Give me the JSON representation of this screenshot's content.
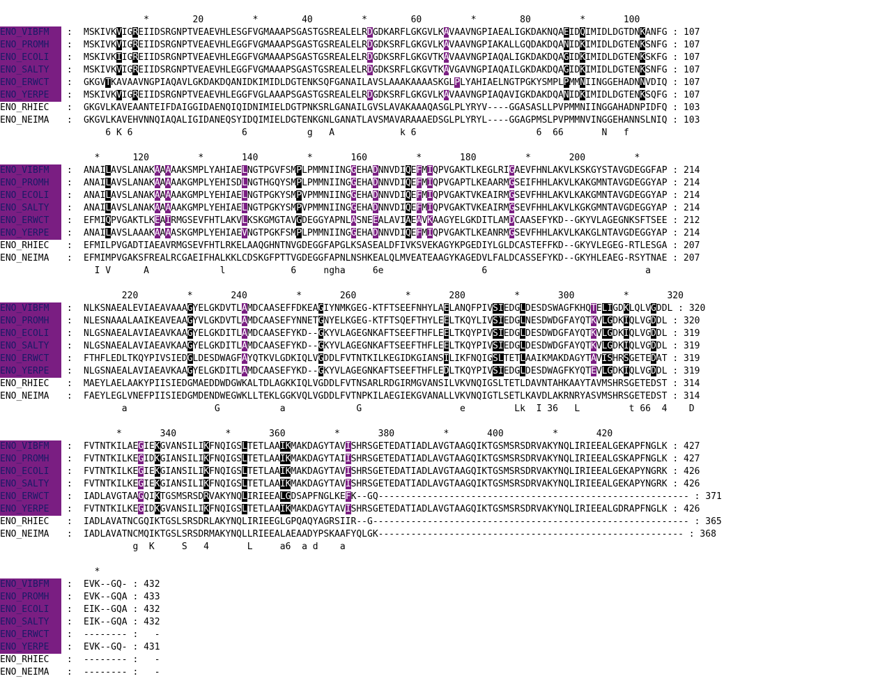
{
  "colors": {
    "identical": "#000000",
    "similar": "#7a1e82",
    "name_highlight": "#7a1e82"
  },
  "blocks": [
    {
      "ruler": "           *        20         *        40         *        60         *        80         *       100",
      "rows": [
        {
          "name": "ENO_VIBFM",
          "hl": true,
          "seq": "MSKIVKVIGREIIDSRGNPTVEAEVHLESGFVGMAAAPSGASTGSREALELRDGDKARFLGKGVLKAVAAVNGPIAEALIGKDAKNQAEIDQIMIDLDGTDNKANFG",
          "end": ": 107"
        },
        {
          "name": "ENO_PROMH",
          "hl": true,
          "seq": "MSKIVKVIGREIIDSRGNPTVEAEVHLEGGFVGMAAAPSGASTGSREALELRDGDKSRFLGKGVLKAVAAVNGPIAKALLGQDAKDQANIDKIMIDLDGTENKSNFG",
          "end": ": 107"
        },
        {
          "name": "ENO_ECOLI",
          "hl": true,
          "seq": "MSKIVKIIGREIIDSRGNPTVEAEVHLEGGFVGMAAAPSGASTGSREALELRDGDKSRFLGKGVTKAVAAVNGPIAQALIGKDAKDQAGIDKIMIDLDGTENKSKFG",
          "end": ": 107"
        },
        {
          "name": "ENO_SALTY",
          "hl": true,
          "seq": "MSKIVKVIGREIIDSRGNPTVEAEVHLEGGFVGMAAAPSGASTGSREALELRDGDKSRFLGKGVTKAVGAVNGPIAQAILGKDAKDQAGIDKIMIDLDGTENKSNFG",
          "end": ": 107"
        },
        {
          "name": "ENO_ERWCT",
          "hl": true,
          "seq": "GKGVTKAVAAVNGPIAQAVLGKDAKDQANIDKIMIDLDGTENKSQFGANAILAVSLAAAKAAAASKGLPLYAHIAELNGTPGKYSMPLPMMNIINGGEHADNNVDIQ",
          "end": ": 107"
        },
        {
          "name": "ENO_YERPE",
          "hl": true,
          "seq": "MSKIVKVIGREIIDSRGNPTVEAEVHLEGGFVGLAAAPSGASTGSREALELRDGDKSRFLGKGVLKAVAAVNGPIAQAVIGKDAKDQANIDKIMIDLDGTENKSQFG",
          "end": ": 107"
        },
        {
          "name": "ENO_RHIEC",
          "hl": false,
          "seq": "GKGVLKAVEAANTEIFDAIGGIDAENQIQIDNIMIELDGTPNKSRLGANAILGVSLAVAKAAAQASGLPLYRYV----GGASASLLPVPMMNIINGGAHADNPIDFQ",
          "end": ": 103"
        },
        {
          "name": "ENO_NEIMA",
          "hl": false,
          "seq": "GKGVLKAVEHVNNQIAQALIGIDANEQSYIDQIMIELDGTENKGNLGANATLAVSMAVARAAAEDSGLPLYRYL----GGAGPMSLPVPMMNVINGGEHANNSLNIQ",
          "end": ": 103"
        }
      ],
      "cons": "    6 K 6                    6           g   A            k 6                      6  66       N   f",
      "marks": [
        {
          "pos": 6,
          "c": "b",
          "rows": [
            0,
            1,
            2,
            3,
            5
          ]
        },
        {
          "pos": 9,
          "c": "b",
          "rows": [
            0,
            1,
            2,
            3,
            5
          ]
        },
        {
          "pos": 52,
          "c": "p",
          "rows": [
            0,
            1,
            2,
            3,
            5
          ]
        },
        {
          "pos": 66,
          "c": "p",
          "rows": [
            0,
            1,
            2,
            3,
            5
          ]
        },
        {
          "pos": 88,
          "c": "b",
          "rows": [
            0,
            1,
            2,
            3,
            5
          ]
        },
        {
          "pos": 91,
          "c": "b",
          "rows": [
            0,
            1,
            2,
            3,
            5
          ]
        },
        {
          "pos": 102,
          "c": "b",
          "rows": [
            0,
            1,
            2,
            3,
            5
          ]
        },
        {
          "pos": 4,
          "c": "b",
          "rows": [
            4
          ]
        },
        {
          "pos": 68,
          "c": "p",
          "rows": [
            4
          ]
        },
        {
          "pos": 88,
          "c": "b",
          "rows": [
            4
          ]
        },
        {
          "pos": 91,
          "c": "b",
          "rows": [
            4
          ]
        },
        {
          "pos": 102,
          "c": "b",
          "rows": [
            4
          ]
        }
      ]
    },
    {
      "ruler": "  *      120         *       140         *       160         *       180         *       200         *",
      "rows": [
        {
          "name": "ENO_VIBFM",
          "hl": true,
          "seq": "ANAILAVSLANAKAAAAAKSMPLYAHIAELNGTPGVFSMPLPMMNIINGGEHADNNVDIQEFMIQPVGAKTLKEGLRIGAEVFHNLAKVLKSKGYSTAVGDEGGFAP",
          "end": ": 214"
        },
        {
          "name": "ENO_PROMH",
          "hl": true,
          "seq": "ANAILAVSLANAKAAAAAKGMPLYEHISDLNGTHGQYSMPLPMMNIINGGEHADNNVDIQEFMIQPVGAPTLKEAARMGSEIFHHLAKVLKAKGMNTAVGDEGGYAP",
          "end": ": 214"
        },
        {
          "name": "ENO_ECOLI",
          "hl": true,
          "seq": "ANAILAVSLANAKAAAAAKGMPLYEHIAELNGTPGKYSMPVPMMNIINGGEHADNNVDIQEFMIQPVGAKTVKEAIRMGSEVFHHLAKVLKAKGMNTAVGDEGGYAP",
          "end": ": 214"
        },
        {
          "name": "ENO_SALTY",
          "hl": true,
          "seq": "ANAILAVSLANAKAAAAAKGMPLYEHIAELNGTPGKYSMPVPMMNIINGGEHADNNVDIQEFMIQPVGAKTVKEAIRMGSEVFHHLAKVLKGKGMNTAVGDEGGYAP",
          "end": ": 214"
        },
        {
          "name": "ENO_ERWCT",
          "hl": true,
          "seq": "EFMIQPVGAKTLKEAIRMGSEVFHTLAKVLKSKGMGTAVGDEGGYAPNLASNEEALAVIAEAVKAAGYELGKDITLAMDCAASEFYKD--GKYVLAGEGNKSFTSEE",
          "end": ": 212"
        },
        {
          "name": "ENO_YERPE",
          "hl": true,
          "seq": "ANAILAVSLAAAKAAAASKGMPLYEHIAEVNGTPGKFSMPLPMMNIINGGEHADNNVDIQEFMIQPVGAKTLKEANRMGSEVFHHLAKVLKAKGLNTAVGDEGGYAP",
          "end": ": 214"
        },
        {
          "name": "ENO_RHIEC",
          "hl": false,
          "seq": "EFMILPVGADTIAEAVRMGSEVFHTLRKELAAQGHNTNVGDEGGFAPGLKSASEALDFIVKSVEKAGYKPGEDIYLGLDCASTEFFKD--GKYVLEGEG-RTLESGA",
          "end": ": 207"
        },
        {
          "name": "ENO_NEIMA",
          "hl": false,
          "seq": "EFMIMPVGAKSFREALRCGAEIFHALKKLCDSKGFPTTVGDEGGFAPNLNSHKEALQLMVEATEAAGYKAGEDVLFALDCASSEFYKD--GKYHLEAEG-RSYTNAE",
          "end": ": 207"
        }
      ],
      "cons": "  I V      A             l            6     ngha     6e                  6                             a",
      "marks": [
        {
          "pos": 4,
          "c": "b",
          "rows": [
            0,
            1,
            2,
            3,
            4,
            5
          ]
        },
        {
          "pos": 13,
          "c": "p",
          "rows": [
            0,
            1,
            2,
            3,
            4,
            5
          ]
        },
        {
          "pos": 15,
          "c": "p",
          "rows": [
            0,
            1,
            2,
            3,
            4,
            5
          ]
        },
        {
          "pos": 29,
          "c": "p",
          "rows": [
            0,
            1,
            2,
            3,
            4,
            5
          ]
        },
        {
          "pos": 39,
          "c": "b",
          "rows": [
            0,
            1,
            2,
            3,
            4,
            5
          ]
        },
        {
          "pos": 49,
          "c": "p",
          "rows": [
            0,
            1,
            2,
            3,
            4,
            5
          ]
        },
        {
          "pos": 53,
          "c": "p",
          "rows": [
            0,
            1,
            2,
            3,
            4,
            5
          ]
        },
        {
          "pos": 59,
          "c": "b",
          "rows": [
            0,
            1,
            2,
            3,
            4,
            5
          ]
        },
        {
          "pos": 61,
          "c": "p",
          "rows": [
            0,
            1,
            2,
            3,
            4,
            5
          ]
        },
        {
          "pos": 63,
          "c": "p",
          "rows": [
            0,
            1,
            2,
            3,
            4,
            5
          ]
        },
        {
          "pos": 78,
          "c": "p",
          "rows": [
            0,
            1,
            2,
            3,
            4,
            5
          ]
        }
      ]
    },
    {
      "ruler": "       220         *       240         *       260         *       280         *       300         *       320",
      "rows": [
        {
          "name": "ENO_VIBFM",
          "hl": true,
          "seq": "NLKSNAEALEVIAEAVAAAGYELGKDVTLAMDCAASEFFDKEAGIYNMKGEG-KTFTSEEFNHYLAELANQFPIVSIEDGLDESDSWAGFKHQTELIGDKLQLVGDDL",
          "end": ": 320"
        },
        {
          "name": "ENO_PROMH",
          "hl": true,
          "seq": "NLESNAAALAAIKEAVEAAGYVLGKDVTLAMDCAASEFYNNETGNYELKGEG-KTFTSQEFTHYLEELTKQYLIVSIEDGLNESDWDGFAYQTKVLGDKIQLVGDDL",
          "end": ": 320"
        },
        {
          "name": "ENO_ECOLI",
          "hl": true,
          "seq": "NLGSNAEALAVIAEAVKAAGYELGKDITLAMDCAASEFYKD--GKYVLAGEGNKAFTSEEFTHFLEELTKQYPIVSIEDGLDESDWDGFAYQTKVLGDKIQLVGDDL",
          "end": ": 319"
        },
        {
          "name": "ENO_SALTY",
          "hl": true,
          "seq": "NLGSNAEALAVIAEAVKAAGYELGKDITLAMDCAASEFYKD--GKYVLAGEGNKAFTSEEFTHFLEELTKQYPIVSIEDGLDESDWDGFAYQTKVLGDKIQLVGDDL",
          "end": ": 319"
        },
        {
          "name": "ENO_ERWCT",
          "hl": true,
          "seq": "FTHFLEDLTKQYPIVSIEDGLDESDWAGFAYQTKVLGDKIQLVGDDLFVTNTKILKEGIDKGIANSILIKFNQIGSLTETLAAIKMAKDAGYTAVISHRSGETEDAT",
          "end": ": 319"
        },
        {
          "name": "ENO_YERPE",
          "hl": true,
          "seq": "NLGSNAEALAVIAEAVKAAGYELGKDITLAMDCAASEFYKD--GKYVLAGEGNKAFTSEEFTHFLEDLTKQYPIVSIEDGLDESDWAGFKYQTEVLGDKIQLVGDDL",
          "end": ": 319"
        },
        {
          "name": "ENO_RHIEC",
          "hl": false,
          "seq": "MAEYLAELAAKYPIISIEDGMAEDDWDGWKALTDLAGKKIQLVGDDLFVTNSARLRDGIRMGVANSILVKVNQIGSLTETLDAVNTAHKAAYTAVMSHRSGETEDST",
          "end": ": 314"
        },
        {
          "name": "ENO_NEIMA",
          "hl": false,
          "seq": "FAEYLEGLVNEFPIISIEDGMDENDWEGWKLLTEKLGGKVQLVGDDLFVTNPKILAEGIEKGVANALLVKVNQIGTLSETLKAVDLAKRNRYASVMSHRSGETEDST",
          "end": ": 314"
        }
      ],
      "cons": "       a                G           a             G                  e         Lk  I 36   L         t 66  4    D",
      "marks": [
        {
          "pos": 19,
          "c": "b",
          "rows": [
            0,
            1,
            2,
            3,
            4,
            5
          ]
        },
        {
          "pos": 29,
          "c": "p",
          "rows": [
            0,
            1,
            2,
            3,
            4,
            5
          ]
        },
        {
          "pos": 43,
          "c": "b",
          "rows": [
            0,
            1,
            2,
            3,
            4,
            5
          ]
        },
        {
          "pos": 66,
          "c": "b",
          "rows": [
            0,
            1,
            2,
            3,
            4,
            5
          ]
        },
        {
          "pos": 75,
          "c": "b",
          "rows": [
            0,
            1,
            2,
            3,
            4,
            5
          ]
        },
        {
          "pos": 76,
          "c": "b",
          "rows": [
            0,
            1,
            2,
            3,
            4,
            5
          ]
        },
        {
          "pos": 80,
          "c": "b",
          "rows": [
            0,
            1,
            2,
            3,
            4,
            5
          ]
        },
        {
          "pos": 93,
          "c": "p",
          "rows": [
            0,
            1,
            2,
            3,
            4,
            5
          ]
        },
        {
          "pos": 95,
          "c": "b",
          "rows": [
            0,
            1,
            2,
            3,
            4,
            5
          ]
        },
        {
          "pos": 96,
          "c": "b",
          "rows": [
            0,
            1,
            2,
            3,
            4,
            5
          ]
        },
        {
          "pos": 99,
          "c": "b",
          "rows": [
            0,
            1,
            2,
            3,
            4,
            5
          ]
        },
        {
          "pos": 104,
          "c": "b",
          "rows": [
            0,
            1,
            2,
            3,
            4,
            5
          ]
        }
      ]
    },
    {
      "ruler": "      *       340         *       360         *       380         *       400         *       420",
      "rows": [
        {
          "name": "ENO_VIBFM",
          "hl": true,
          "seq": "FVTNTKILAEGIEKGVANSILIKFNQIGSLTETLAAIKMAKDAGYTAVISHRSGETEDATIADLAVGTAAGQIKTGSMSRSDRVAKYNQLIRIEEALGEKAPFNGLK",
          "end": ": 427"
        },
        {
          "name": "ENO_PROMH",
          "hl": true,
          "seq": "FVTNTKILKEGIDKGIANSILIKFNQIGSLTETLAAIKMAKDAGYTAIISHRSGETEDATIADLAVGTAAGQIKTGSMSRSDRVAKYNQLIRIEEALGSKAPFNGLK",
          "end": ": 427"
        },
        {
          "name": "ENO_ECOLI",
          "hl": true,
          "seq": "FVTNTKILKEGIEKGIANSILIKFNQIGSLTETLAAIKMAKDAGYTAVISHRSGETEDATIADLAVGTAAGQIKTGSMSRSDRVAKYNQLIRIEEALGEKAPYNGRK",
          "end": ": 426"
        },
        {
          "name": "ENO_SALTY",
          "hl": true,
          "seq": "FVTNTKILKEGIEKGIANSILIKFNQIGSLTETLAAIKMAKDAGYTAVISHRSGETEDATIADLAVGTAAGQIKTGSMSRSDRVAKYNQLIRIEEALGEKAPYNGRK",
          "end": ": 426"
        },
        {
          "name": "ENO_ERWCT",
          "hl": true,
          "seq": "IADLAVGTAAGQIKTGSMSRSDRVAKYNQLIRIEEALGDSAPFNGLKEFK--GQ---------------------------------------------------------",
          "end": ": 371"
        },
        {
          "name": "ENO_YERPE",
          "hl": true,
          "seq": "FVTNTKILKEGIDKGVANSILIKFNQIGSLTETLAAIKMAKDAGYTAVISHRSGETEDATIADLAVGTAAGQIKTGSMSRSDRVAKYNQLIRIEEALGDRAPFNGLK",
          "end": ": 426"
        },
        {
          "name": "ENO_RHIEC",
          "hl": false,
          "seq": "IADLAVATNCGQIKTGSLSRSDRLAKYNQLIRIEEGLGPQAQYAGRSIIR--G----------------------------------------------------------",
          "end": ": 365"
        },
        {
          "name": "ENO_NEIMA",
          "hl": false,
          "seq": "IADLAVATNCMQIKTGSLSRSDRMAKYNQLLRIEEALAEAADYPSKAAFYQLGK--------------------------------------------------------",
          "end": ": 368"
        }
      ],
      "cons": "         g  K     S   4       L     a6  a d    a",
      "marks": [
        {
          "pos": 10,
          "c": "p",
          "rows": [
            0,
            1,
            2,
            3,
            4,
            5
          ]
        },
        {
          "pos": 13,
          "c": "b",
          "rows": [
            0,
            1,
            2,
            3,
            4,
            5
          ]
        },
        {
          "pos": 22,
          "c": "b",
          "rows": [
            0,
            1,
            2,
            3,
            4,
            5
          ]
        },
        {
          "pos": 29,
          "c": "b",
          "rows": [
            0,
            1,
            2,
            3,
            4,
            5
          ]
        },
        {
          "pos": 36,
          "c": "b",
          "rows": [
            0,
            1,
            2,
            3,
            4,
            5
          ]
        },
        {
          "pos": 37,
          "c": "b",
          "rows": [
            0,
            1,
            2,
            3,
            4,
            5
          ]
        },
        {
          "pos": 48,
          "c": "p",
          "rows": [
            0,
            1,
            2,
            3,
            4,
            5
          ]
        }
      ]
    },
    {
      "ruler": "  *",
      "rows": [
        {
          "name": "ENO_VIBFM",
          "hl": true,
          "seq": "EVK--GQ-",
          "end": ": 432"
        },
        {
          "name": "ENO_PROMH",
          "hl": true,
          "seq": "EVK--GQA",
          "end": ": 433"
        },
        {
          "name": "ENO_ECOLI",
          "hl": true,
          "seq": "EIK--GQA",
          "end": ": 432"
        },
        {
          "name": "ENO_SALTY",
          "hl": true,
          "seq": "EIK--GQA",
          "end": ": 432"
        },
        {
          "name": "ENO_ERWCT",
          "hl": true,
          "seq": "--------",
          "end": ":   -"
        },
        {
          "name": "ENO_YERPE",
          "hl": true,
          "seq": "EVK--GQ-",
          "end": ": 431"
        },
        {
          "name": "ENO_RHIEC",
          "hl": false,
          "seq": "--------",
          "end": ":   -"
        },
        {
          "name": "ENO_NEIMA",
          "hl": false,
          "seq": "--------",
          "end": ":   -"
        }
      ],
      "cons": "",
      "marks": []
    }
  ]
}
